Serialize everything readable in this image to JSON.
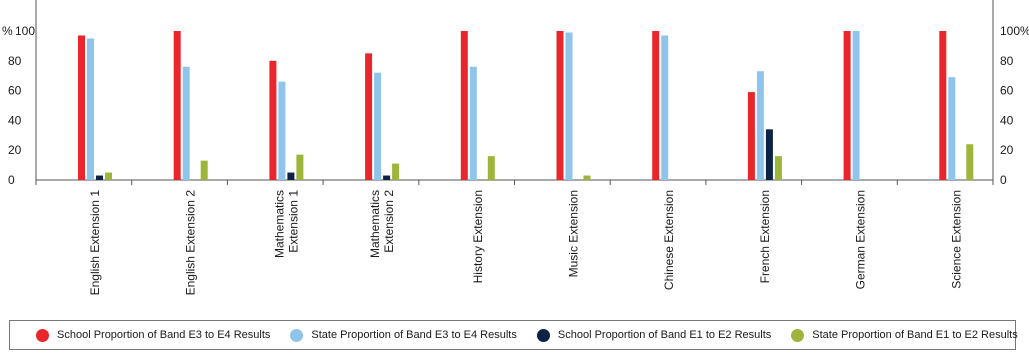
{
  "chart_data": {
    "type": "bar",
    "y_axis_left_label": "%",
    "y_axis_right_label": "%",
    "ylim": [
      0,
      100
    ],
    "yticks": [
      0,
      20,
      40,
      60,
      80,
      100
    ],
    "grid": false,
    "legend_placement": "bottom",
    "categories": [
      [
        "English Extension 1"
      ],
      [
        "English Extension 2"
      ],
      [
        "Mathematics",
        "Extension 1"
      ],
      [
        "Mathematics",
        "Extension 2"
      ],
      [
        "History Extension"
      ],
      [
        "Music Extension"
      ],
      [
        "Chinese Extension"
      ],
      [
        "French Extension"
      ],
      [
        "German Extension"
      ],
      [
        "Science Extension"
      ]
    ],
    "series": [
      {
        "name": "School Proportion of Band E3 to E4 Results",
        "color": "#e8262b",
        "values": [
          97,
          100,
          80,
          85,
          100,
          100,
          100,
          59,
          100,
          100
        ]
      },
      {
        "name": "State Proportion of Band E3 to E4 Results",
        "color": "#8fc5ea",
        "values": [
          95,
          76,
          66,
          72,
          76,
          99,
          97,
          73,
          100,
          69
        ]
      },
      {
        "name": "School Proportion of Band E1 to E2 Results",
        "color": "#0d2346",
        "values": [
          3,
          0,
          5,
          3,
          0,
          0,
          0,
          34,
          0,
          0
        ]
      },
      {
        "name": "State Proportion of Band E1 to E2 Results",
        "color": "#9db53a",
        "values": [
          5,
          13,
          17,
          11,
          16,
          3,
          0,
          16,
          0,
          24
        ]
      }
    ]
  }
}
